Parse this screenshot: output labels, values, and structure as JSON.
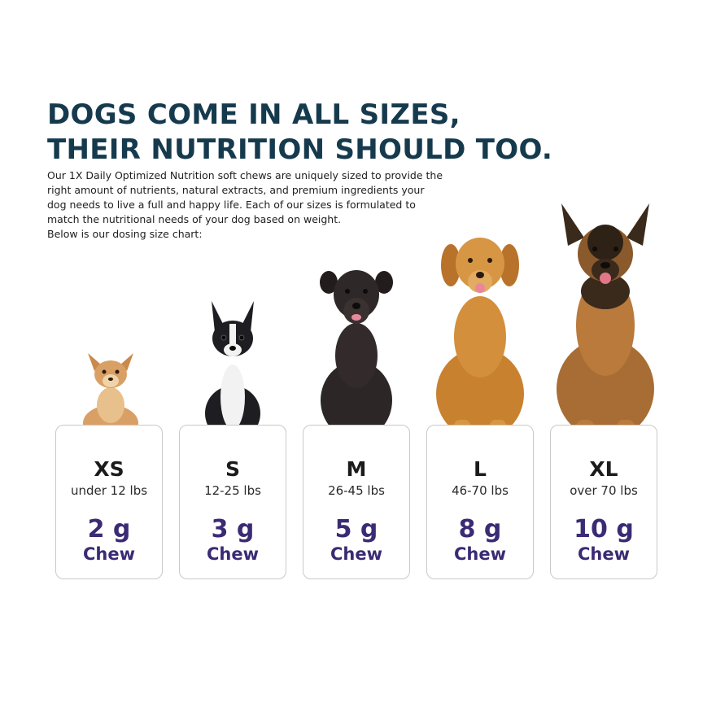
{
  "headline": {
    "line1": "DOGS COME IN ALL SIZES,",
    "line2": "THEIR NUTRITION SHOULD TOO."
  },
  "intro": {
    "lines": [
      "Our 1X Daily Optimized Nutrition soft chews are uniquely sized to provide the",
      "right amount of nutrients, natural extracts, and premium ingredients your",
      "dog needs to live a full and happy life. Each of our sizes is formulated to",
      "match the nutritional needs of your dog based on weight.",
      "Below is our dosing size chart:"
    ]
  },
  "size_chart": [
    {
      "size": "XS",
      "range": "under 12 lbs",
      "dose": "2 g",
      "unit": "Chew",
      "dog": "chihuahua"
    },
    {
      "size": "S",
      "range": "12-25 lbs",
      "dose": "3 g",
      "unit": "Chew",
      "dog": "boston-terrier"
    },
    {
      "size": "M",
      "range": "26-45 lbs",
      "dose": "5 g",
      "unit": "Chew",
      "dog": "black-curly-dog"
    },
    {
      "size": "L",
      "range": "46-70 lbs",
      "dose": "8 g",
      "unit": "Chew",
      "dog": "golden-retriever"
    },
    {
      "size": "XL",
      "range": "over 70 lbs",
      "dose": "10 g",
      "unit": "Chew",
      "dog": "german-shepherd"
    }
  ],
  "colors": {
    "headline": "#163a4d",
    "dose_text": "#3b2a74",
    "card_border": "#c9c9cc"
  }
}
